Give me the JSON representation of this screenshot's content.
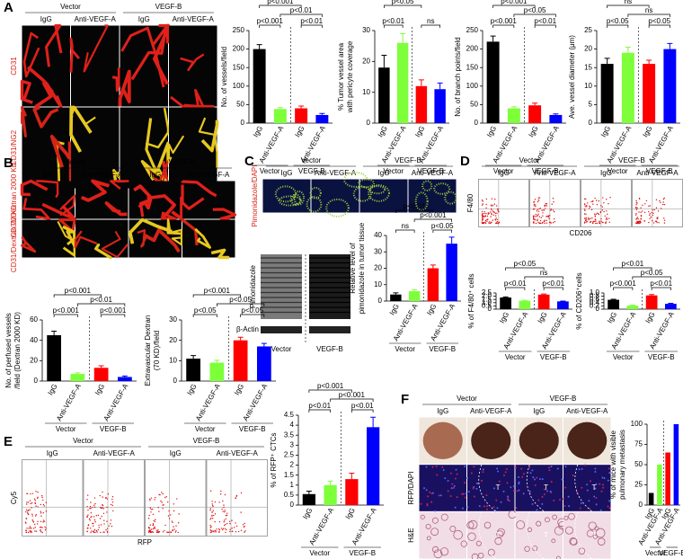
{
  "panels": {
    "A": {
      "letter": "A",
      "groups": [
        "Vector",
        "VEGF-B"
      ],
      "columns": [
        "IgG",
        "Anti-VEGF-A",
        "IgG",
        "Anti-VEGF-A"
      ],
      "rows": [
        "CD31",
        "CD31/NG2"
      ]
    },
    "B": {
      "letter": "B",
      "groups": [
        "Vector",
        "VEGF-B"
      ],
      "columns": [
        "IgG",
        "Anti-VEGF-A",
        "IgG",
        "Anti-VEGF-A"
      ],
      "rows": [
        "CD31/Dextran 2000 KD",
        "CD31/Dextran 70 KD"
      ]
    },
    "C": {
      "letter": "C",
      "groups": [
        "Vector",
        "VEGF-B"
      ],
      "columns": [
        "IgG",
        "Anti-VEGF-A",
        "IgG",
        "Anti-VEGF-A"
      ],
      "rows": [
        "Pimonidazole/DAPI"
      ],
      "blot": {
        "bands": [
          "Pimonidazole",
          "β-Actin"
        ],
        "lanes": [
          "Vector",
          "VEGF-B"
        ]
      }
    },
    "D": {
      "letter": "D",
      "groups": [
        "Vector",
        "VEGF-B"
      ],
      "columns": [
        "IgG",
        "Anti-VEGF-A",
        "IgG",
        "Anti-VEGF-A"
      ],
      "rows": [
        "F4/80"
      ],
      "x_axis": "CD206"
    },
    "E": {
      "letter": "E",
      "groups": [
        "Vector",
        "VEGF-B"
      ],
      "columns": [
        "IgG",
        "Anti-VEGF-A",
        "IgG",
        "Anti-VEGF-A"
      ],
      "rows": [
        "Cy5"
      ],
      "x_axis": "RFP"
    },
    "F": {
      "letter": "F",
      "groups": [
        "Vector",
        "VEGF-B"
      ],
      "columns": [
        "IgG",
        "Anti-VEGF-A",
        "IgG",
        "Anti-VEGF-A"
      ],
      "rows": [
        null,
        "RFP/DAPI",
        "H&E"
      ],
      "tumor_marker": "T"
    }
  },
  "chart_data": [
    {
      "type": "bar",
      "y_label": [
        "No. of vessels/field"
      ],
      "categories": [
        "IgG",
        "Anti-VEGF-A",
        "IgG",
        "Anti-VEGF-A"
      ],
      "groups": [
        "Vector",
        "VEGF-B"
      ],
      "values": [
        200,
        38,
        40,
        22
      ],
      "errors": [
        12,
        4,
        6,
        4
      ],
      "colors": [
        "#000000",
        "#7dff3a",
        "#ff0000",
        "#0000ff"
      ],
      "ylim": [
        0,
        250
      ],
      "yticks": [
        0,
        50,
        100,
        150,
        200,
        250
      ],
      "significance": [
        "p<0.001",
        "p<0.01",
        "p<0.001",
        "p<0.01"
      ]
    },
    {
      "type": "bar",
      "y_label": [
        "% Tumor vessel area",
        "with pericyte coverage"
      ],
      "categories": [
        "IgG",
        "Anti-VEGF-A",
        "IgG",
        "Anti-VEGF-A"
      ],
      "groups": [
        "Vector",
        "VEGF-B"
      ],
      "values": [
        18,
        26,
        12,
        11
      ],
      "errors": [
        4,
        3,
        2,
        2
      ],
      "colors": [
        "#000000",
        "#7dff3a",
        "#ff0000",
        "#0000ff"
      ],
      "ylim": [
        0,
        30
      ],
      "yticks": [
        0,
        10,
        20,
        30
      ],
      "significance": [
        "p<0.05",
        null,
        "p<0.01",
        "ns"
      ]
    },
    {
      "type": "bar",
      "y_label": [
        "No. of branch points/field"
      ],
      "categories": [
        "IgG",
        "Anti-VEGF-A",
        "IgG",
        "Anti-VEGF-A"
      ],
      "groups": [
        "Vector",
        "VEGF-B"
      ],
      "values": [
        220,
        40,
        48,
        22
      ],
      "errors": [
        15,
        4,
        6,
        3
      ],
      "colors": [
        "#000000",
        "#7dff3a",
        "#ff0000",
        "#0000ff"
      ],
      "ylim": [
        0,
        250
      ],
      "yticks": [
        0,
        50,
        100,
        150,
        200,
        250
      ],
      "significance": [
        "p<0.001",
        "p<0.05",
        "p<0.001",
        "p<0.01"
      ]
    },
    {
      "type": "bar",
      "y_label": [
        "Ave. vessel diameter (μm)"
      ],
      "categories": [
        "IgG",
        "Anti-VEGF-A",
        "IgG",
        "Anti-VEGF-A"
      ],
      "groups": [
        "Vector",
        "VEGF-B"
      ],
      "values": [
        16,
        19,
        16,
        20
      ],
      "errors": [
        1.5,
        1.5,
        1,
        1.5
      ],
      "colors": [
        "#000000",
        "#7dff3a",
        "#ff0000",
        "#0000ff"
      ],
      "ylim": [
        0,
        25
      ],
      "yticks": [
        0,
        5,
        10,
        15,
        20,
        25
      ],
      "significance": [
        "ns",
        "ns",
        "p<0.05",
        "p<0.05"
      ]
    },
    {
      "type": "bar",
      "y_label": [
        "No. of perfused vessels",
        "/field (Dextran 2000 KD)"
      ],
      "categories": [
        "IgG",
        "Anti-VEGF-A",
        "IgG",
        "Anti-VEGF-A"
      ],
      "groups": [
        "Vector",
        "VEGF-B"
      ],
      "values": [
        45,
        7,
        13,
        4
      ],
      "errors": [
        4,
        1,
        2,
        1
      ],
      "colors": [
        "#000000",
        "#7dff3a",
        "#ff0000",
        "#0000ff"
      ],
      "ylim": [
        0,
        60
      ],
      "yticks": [
        0,
        20,
        40,
        60
      ],
      "significance": [
        "p<0.001",
        "p<0.01",
        "p<0.001",
        "p<0.001"
      ]
    },
    {
      "type": "bar",
      "y_label": [
        "Extravascular Dextran",
        "(70 KD)/field"
      ],
      "categories": [
        "IgG",
        "Anti-VEGF-A",
        "IgG",
        "Anti-VEGF-A"
      ],
      "groups": [
        "Vector",
        "VEGF-B"
      ],
      "values": [
        11,
        9,
        20,
        17
      ],
      "errors": [
        1.5,
        1.2,
        1.5,
        1.5
      ],
      "colors": [
        "#000000",
        "#7dff3a",
        "#ff0000",
        "#0000ff"
      ],
      "ylim": [
        0,
        30
      ],
      "yticks": [
        0,
        10,
        20,
        30
      ],
      "significance": [
        "p<0.001",
        "p<0.05",
        "p<0.05",
        "p<0.05"
      ]
    },
    {
      "type": "bar",
      "y_label": [
        "Relative level of",
        "pimonidazole in tumor tissue"
      ],
      "categories": [
        "IgG",
        "Anti-VEGF-A",
        "IgG",
        "Anti-VEGF-A"
      ],
      "groups": [
        "Vector",
        "VEGF-B"
      ],
      "values": [
        4,
        6,
        20,
        35
      ],
      "errors": [
        1,
        1,
        2,
        4
      ],
      "colors": [
        "#000000",
        "#7dff3a",
        "#ff0000",
        "#0000ff"
      ],
      "ylim": [
        0,
        40
      ],
      "yticks": [
        0,
        10,
        20,
        30,
        40
      ],
      "significance": [
        "p<0.01",
        "p<0.001",
        "ns",
        "p<0.05"
      ]
    },
    {
      "type": "bar",
      "y_label": [
        "% of F4/80⁺ cells"
      ],
      "categories": [
        "IgG",
        "Anti-VEGF-A",
        "IgG",
        "Anti-VEGF-A"
      ],
      "groups": [
        "Vector",
        "VEGF-B"
      ],
      "values": [
        1.8,
        1.3,
        2.25,
        1.2
      ],
      "errors": [
        0.1,
        0.05,
        0.1,
        0.05
      ],
      "colors": [
        "#000000",
        "#7dff3a",
        "#ff0000",
        "#0000ff"
      ],
      "ylim": [
        0,
        2.5
      ],
      "yticks": [
        0,
        0.5,
        {
          "value": 1,
          "label": "1.0"
        },
        1.5,
        {
          "value": 2,
          "label": "2.0"
        },
        2.5
      ],
      "significance": [
        "p<0.05",
        "ns",
        "p<0.01",
        "p<0.01"
      ]
    },
    {
      "type": "bar",
      "y_label": [
        "% of CD206⁺cells"
      ],
      "categories": [
        "IgG",
        "Anti-VEGF-A",
        "IgG",
        "Anti-VEGF-A"
      ],
      "groups": [
        "Vector",
        "VEGF-B"
      ],
      "values": [
        0.58,
        0.22,
        0.85,
        0.33
      ],
      "errors": [
        0.03,
        0.02,
        0.05,
        0.03
      ],
      "colors": [
        "#000000",
        "#7dff3a",
        "#ff0000",
        "#0000ff"
      ],
      "ylim": [
        0,
        1
      ],
      "yticks": [
        0,
        0.2,
        0.4,
        0.6,
        0.8,
        {
          "value": 1,
          "label": "1.0"
        }
      ],
      "significance": [
        "p<0.01",
        "p<0.05",
        "p<0.001",
        "p<0.01"
      ]
    },
    {
      "type": "bar",
      "y_label": [
        "% of RFP⁺ CTCs"
      ],
      "categories": [
        "IgG",
        "Anti-VEGF-A",
        "IgG",
        "Anti-VEGF-A"
      ],
      "groups": [
        "Vector",
        "VEGF-B"
      ],
      "values": [
        0.55,
        1,
        1.3,
        3.9
      ],
      "errors": [
        0.15,
        0.2,
        0.3,
        0.5
      ],
      "colors": [
        "#000000",
        "#7dff3a",
        "#ff0000",
        "#0000ff"
      ],
      "ylim": [
        0,
        4.5
      ],
      "yticks": [
        0,
        0.5,
        1,
        1.5,
        2,
        2.5,
        3,
        3.5,
        4,
        4.5
      ],
      "significance": [
        "p<0.001",
        "p<0.001",
        "p<0.01",
        "p<0.01"
      ]
    },
    {
      "type": "bar",
      "y_label": [
        "% of mice with visible",
        "pulmonary metastasis"
      ],
      "categories": [
        "IgG",
        "Anti-VEGF-A",
        "IgG",
        "Anti-VEGF-A"
      ],
      "groups": [
        "Vector",
        "VEGF-B"
      ],
      "values": [
        15,
        50,
        65,
        100
      ],
      "colors": [
        "#000000",
        "#7dff3a",
        "#ff0000",
        "#0000ff"
      ],
      "ylim": [
        0,
        100
      ],
      "yticks": [
        0,
        25,
        50,
        75,
        100
      ]
    }
  ]
}
